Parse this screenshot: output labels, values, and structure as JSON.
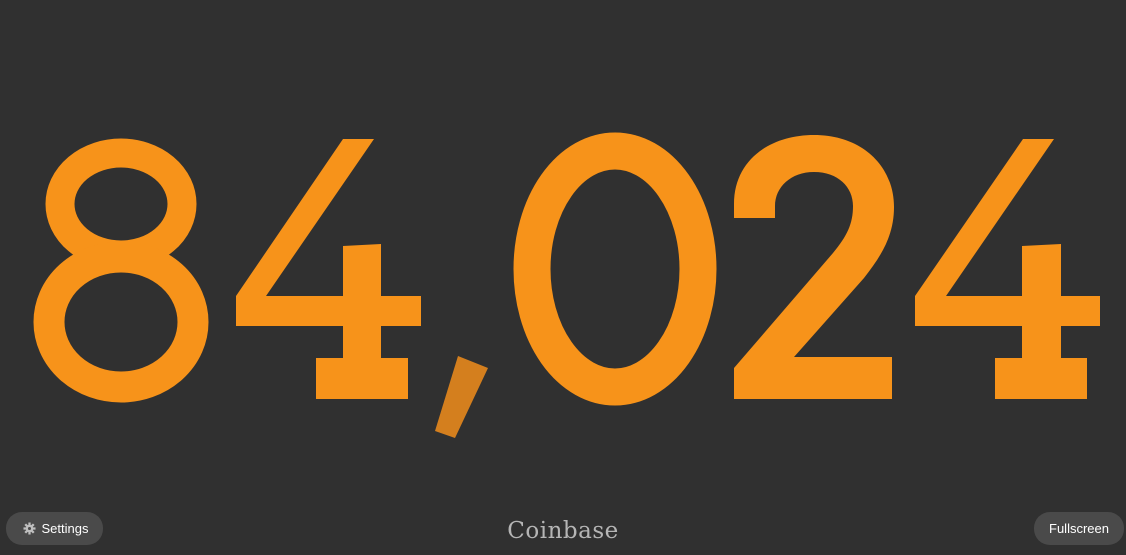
{
  "price": {
    "value": "84,024",
    "color": "#f7931a",
    "comma_color": "#d47f1e"
  },
  "exchange": {
    "name": "Coinbase"
  },
  "controls": {
    "settings_label": "Settings",
    "settings_icon": "gear-icon",
    "fullscreen_label": "Fullscreen"
  },
  "theme": {
    "background": "#303030",
    "button_bg": "#4a4a4a",
    "button_text": "#ffffff",
    "label_color": "#b5b5b5"
  }
}
